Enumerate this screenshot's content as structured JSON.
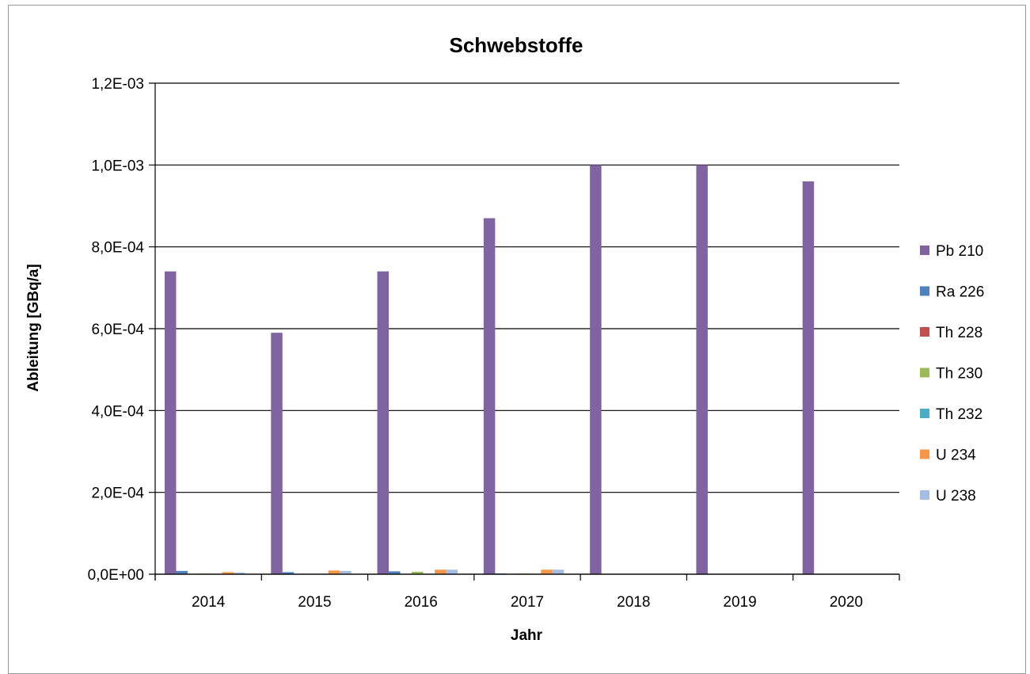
{
  "chart_data": {
    "type": "bar",
    "title": "Schwebstoffe",
    "xlabel": "Jahr",
    "ylabel": "Ableitung [GBq/a]",
    "categories": [
      "2014",
      "2015",
      "2016",
      "2017",
      "2018",
      "2019",
      "2020"
    ],
    "ylim": [
      0,
      0.0012
    ],
    "yticks": [
      0,
      0.0002,
      0.0004,
      0.0006,
      0.0008,
      0.001,
      0.0012
    ],
    "ytick_labels": [
      "0,0E+00",
      "2,0E-04",
      "4,0E-04",
      "6,0E-04",
      "8,0E-04",
      "1,0E-03",
      "1,2E-03"
    ],
    "grid": true,
    "legend_position": "right",
    "series": [
      {
        "name": "Pb 210",
        "color": "#8064a2",
        "values": [
          0.00074,
          0.00059,
          0.00074,
          0.00087,
          0.001,
          0.001,
          0.00096
        ]
      },
      {
        "name": "Ra 226",
        "color": "#4f81bd",
        "values": [
          8e-06,
          5e-06,
          7e-06,
          2e-06,
          0,
          0,
          0
        ]
      },
      {
        "name": "Th 228",
        "color": "#c0504d",
        "values": [
          1e-06,
          1e-06,
          1e-06,
          1e-06,
          0,
          0,
          0
        ]
      },
      {
        "name": "Th 230",
        "color": "#9bbb59",
        "values": [
          2e-06,
          1e-06,
          6e-06,
          2e-06,
          0,
          0,
          0
        ]
      },
      {
        "name": "Th 232",
        "color": "#4bacc6",
        "values": [
          1e-06,
          1e-06,
          1e-06,
          1e-06,
          0,
          0,
          0
        ]
      },
      {
        "name": "U 234",
        "color": "#f79646",
        "values": [
          5e-06,
          9e-06,
          1.1e-05,
          1.1e-05,
          0,
          0,
          0
        ]
      },
      {
        "name": "U 238",
        "color": "#a6bde3",
        "values": [
          4e-06,
          8e-06,
          1.1e-05,
          1.1e-05,
          0,
          0,
          0
        ]
      }
    ]
  }
}
